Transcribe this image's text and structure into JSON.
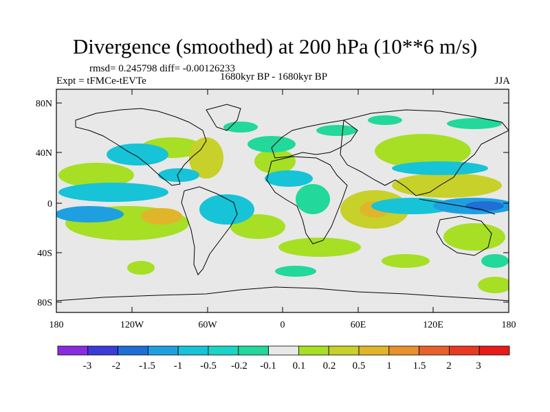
{
  "title": "Divergence (smoothed) at 200 hPa (10**6 m/s)",
  "stats_line": "rmsd= 0.245798 diff= -0.00126233",
  "experiment": "Expt = tFMCe-tEVTe",
  "period": "1680kyr BP - 1680kyr BP",
  "season": "JJA",
  "lat_ticks": [
    "80N",
    "40N",
    "0",
    "40S",
    "80S"
  ],
  "lon_ticks": [
    "180",
    "120W",
    "60W",
    "0",
    "60E",
    "120E",
    "180"
  ],
  "colorbar": {
    "labels": [
      "-3",
      "-2",
      "-1.5",
      "-1",
      "-0.5",
      "-0.2",
      "-0.1",
      "0.1",
      "0.2",
      "0.5",
      "1",
      "1.5",
      "2",
      "3"
    ],
    "colors": [
      "#8a2be2",
      "#3b3bd9",
      "#1f6fd6",
      "#1ea0e0",
      "#17c3d6",
      "#19d4c8",
      "#22d89a",
      "#e8e8e8",
      "#a6df24",
      "#c8d02a",
      "#e0b52a",
      "#e8902c",
      "#e8602c",
      "#e83a22",
      "#e81a1a"
    ]
  },
  "colors": {
    "no_signal": "#e8e8e8",
    "positive_weak": "#a6df24",
    "positive_mid": "#c8d02a",
    "positive_strong": "#e0b52a",
    "negative_weak": "#22d89a",
    "negative_mid": "#17c3d6",
    "negative_strong": "#1ea0e0",
    "negative_peak": "#1f6fd6"
  }
}
